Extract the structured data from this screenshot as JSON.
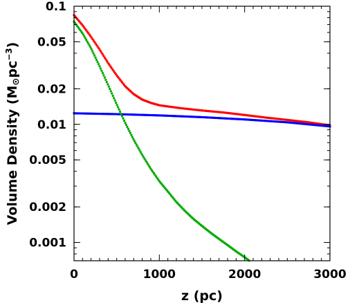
{
  "chart_data": {
    "type": "scatter",
    "xlabel": "z (pc)",
    "ylabel": {
      "prefix": "Volume Density (M",
      "sun": "⊙",
      "mid": "pc",
      "exp": "−3",
      "suffix": ")"
    },
    "xlim": [
      0,
      3000
    ],
    "ylim": [
      0.0007,
      0.1
    ],
    "y_scale": "log",
    "grid": false,
    "legend": "none",
    "x_ticks": [
      0,
      1000,
      2000,
      3000
    ],
    "x_tick_labels": [
      "0",
      "1000",
      "2000",
      "3000"
    ],
    "y_ticks": [
      0.1,
      0.05,
      0.02,
      0.01,
      0.005,
      0.002,
      0.001
    ],
    "y_tick_labels": [
      "0.1",
      "0.05",
      "0.02",
      "0.01",
      "0.005",
      "0.002",
      "0.001"
    ],
    "series": [
      {
        "color": "#ff0000",
        "x": [
          0,
          100,
          200,
          300,
          400,
          500,
          600,
          700,
          800,
          900,
          1000,
          1250,
          1500,
          1750,
          2000,
          2250,
          2500,
          2750,
          3000
        ],
        "y": [
          0.084,
          0.069,
          0.055,
          0.043,
          0.033,
          0.026,
          0.021,
          0.018,
          0.0162,
          0.0152,
          0.0145,
          0.0137,
          0.0131,
          0.0126,
          0.012,
          0.0114,
          0.0109,
          0.0104,
          0.0098
        ]
      },
      {
        "color": "#0000ff",
        "x": [
          0,
          500,
          1000,
          1500,
          2000,
          2500,
          3000
        ],
        "y": [
          0.0124,
          0.0122,
          0.0119,
          0.0115,
          0.011,
          0.0104,
          0.0096
        ]
      },
      {
        "color": "#00aa00",
        "x": [
          0,
          100,
          200,
          300,
          400,
          500,
          600,
          700,
          800,
          900,
          1000,
          1100,
          1200,
          1300,
          1400,
          1500,
          1600,
          1700,
          1800,
          1900,
          2000,
          2100
        ],
        "y": [
          0.074,
          0.059,
          0.044,
          0.031,
          0.0215,
          0.0148,
          0.0103,
          0.0074,
          0.0055,
          0.0042,
          0.0033,
          0.0027,
          0.0022,
          0.00185,
          0.00158,
          0.00138,
          0.00121,
          0.00107,
          0.00095,
          0.00084,
          0.00075,
          0.00066
        ]
      }
    ]
  }
}
